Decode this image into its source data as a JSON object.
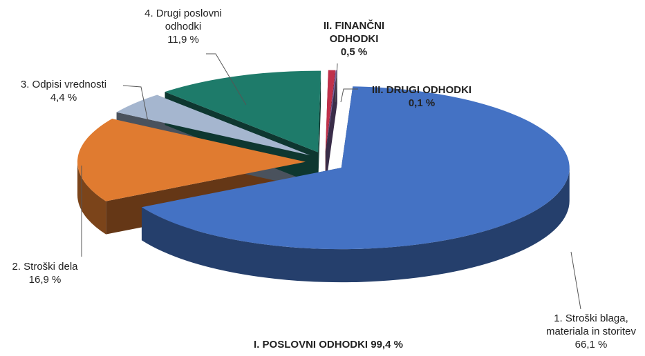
{
  "chart_data": {
    "type": "pie3d",
    "categories": [
      "1. Stroški blaga, materiala in storitev",
      "2. Stroški dela",
      "3. Odpisi vrednosti",
      "4. Drugi poslovni odhodki",
      "II. FINANČNI ODHODKI",
      "III. DRUGI ODHODKI"
    ],
    "values": [
      66.1,
      16.9,
      4.4,
      11.9,
      0.5,
      0.1
    ],
    "value_labels": [
      "66,1 %",
      "16,9 %",
      "4,4 %",
      "11,9 %",
      "0,5 %",
      "0,1 %"
    ],
    "colors": [
      "#4472c4",
      "#e07b30",
      "#a5b6cf",
      "#1e7b6a",
      "#c0304a",
      "#8064a2"
    ],
    "label_bold": [
      false,
      false,
      false,
      false,
      true,
      true
    ],
    "annotation": "I. POSLOVNI ODHODKI 99,4 %"
  }
}
